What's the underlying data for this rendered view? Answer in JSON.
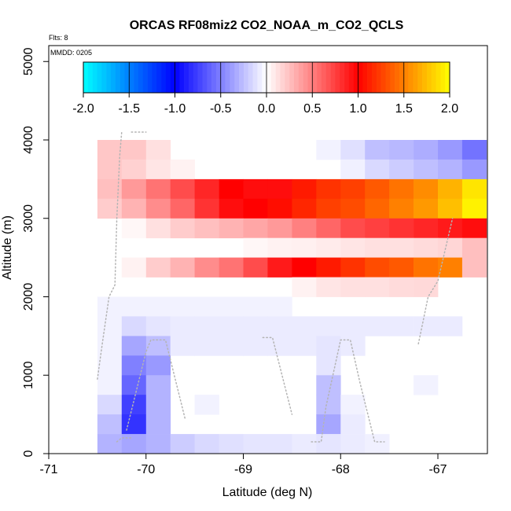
{
  "chart_data": {
    "type": "heatmap",
    "title": "ORCAS RF08miz2 CO2_NOAA_m_CO2_QCLS",
    "flights_label": "Flts: 8",
    "date_label": "MMDD: 0205",
    "xlabel": "Latitude (deg N)",
    "ylabel": "Altitude (m)",
    "xlim": [
      -71,
      -66.5
    ],
    "ylim": [
      0,
      5200
    ],
    "x_ticks": [
      -71,
      -70,
      -69,
      -68,
      -67
    ],
    "x_tick_labels": [
      "-71",
      "-70",
      "-69",
      "-68",
      "-67"
    ],
    "y_ticks": [
      0,
      1000,
      2000,
      3000,
      4000,
      5000
    ],
    "y_tick_labels": [
      "0",
      "1000",
      "2000",
      "3000",
      "4000",
      "5000"
    ],
    "colorbar": {
      "range": [
        -2.0,
        2.0
      ],
      "ticks": [
        -2.0,
        -1.5,
        -1.0,
        -0.5,
        0.0,
        0.5,
        1.0,
        1.5,
        2.0
      ],
      "tick_labels": [
        "-2.0",
        "-1.5",
        "-1.0",
        "-0.5",
        "0.0",
        "0.5",
        "1.0",
        "1.5",
        "2.0"
      ],
      "colors": [
        "#00ffff",
        "#0000ff",
        "#ffffff",
        "#ff0000",
        "#ffff00"
      ]
    },
    "cell_width_deg": 0.25,
    "cell_height_m": 250,
    "cells": [
      {
        "x0": -70.5,
        "y0": 3750,
        "values": [
          0.22,
          0.22,
          0.12,
          null,
          null,
          null,
          null,
          null,
          null,
          -0.05,
          -0.12,
          -0.25,
          -0.28,
          -0.32,
          -0.4,
          -0.55
        ]
      },
      {
        "x0": -70.5,
        "y0": 3500,
        "values": [
          0.22,
          0.18,
          0.1,
          0.05,
          null,
          null,
          null,
          null,
          null,
          null,
          -0.06,
          -0.15,
          -0.2,
          -0.25,
          -0.3,
          -0.4
        ]
      },
      {
        "x0": -70.5,
        "y0": 3250,
        "values": [
          0.25,
          0.4,
          0.55,
          0.7,
          0.85,
          1.0,
          0.95,
          0.95,
          1.1,
          1.2,
          1.25,
          1.35,
          1.45,
          1.55,
          1.7,
          1.9
        ]
      },
      {
        "x0": -70.5,
        "y0": 3000,
        "values": [
          0.2,
          0.3,
          0.45,
          0.6,
          0.8,
          0.95,
          1.0,
          1.05,
          1.15,
          1.25,
          1.3,
          1.4,
          1.5,
          1.6,
          1.75,
          1.95
        ]
      },
      {
        "x0": -70.5,
        "y0": 2750,
        "values": [
          null,
          0.03,
          0.12,
          0.2,
          0.25,
          0.3,
          0.35,
          0.4,
          0.5,
          0.6,
          0.7,
          0.75,
          0.8,
          0.85,
          0.9,
          0.95
        ]
      },
      {
        "x0": -70.5,
        "y0": 2500,
        "values": [
          null,
          null,
          null,
          null,
          null,
          null,
          0.03,
          0.05,
          0.06,
          0.08,
          0.1,
          0.12,
          0.12,
          0.14,
          0.16,
          0.25
        ]
      },
      {
        "x0": -70.5,
        "y0": 2250,
        "values": [
          null,
          0.05,
          0.2,
          0.3,
          0.45,
          0.55,
          0.7,
          0.9,
          1.0,
          1.1,
          1.2,
          1.3,
          1.35,
          1.45,
          1.5,
          0.25
        ]
      },
      {
        "x0": -70.5,
        "y0": 2000,
        "values": [
          null,
          null,
          null,
          null,
          null,
          null,
          null,
          null,
          0.05,
          0.1,
          0.12,
          0.12,
          0.14,
          0.15,
          null,
          null
        ]
      },
      {
        "x0": -70.5,
        "y0": 1750,
        "values": [
          -0.05,
          -0.05,
          -0.05,
          -0.05,
          -0.05,
          -0.05,
          -0.05,
          -0.05,
          null,
          null,
          null,
          null,
          null,
          null,
          null,
          null
        ]
      },
      {
        "x0": -70.5,
        "y0": 1500,
        "values": [
          -0.05,
          -0.15,
          -0.1,
          -0.08,
          -0.08,
          -0.08,
          -0.08,
          -0.08,
          -0.08,
          -0.08,
          -0.08,
          -0.08,
          -0.08,
          -0.08,
          -0.08,
          null
        ]
      },
      {
        "x0": -70.5,
        "y0": 1250,
        "values": [
          -0.05,
          -0.35,
          -0.25,
          -0.08,
          -0.08,
          -0.08,
          -0.08,
          -0.08,
          -0.08,
          -0.1,
          -0.08,
          null,
          null,
          null,
          null,
          null
        ]
      },
      {
        "x0": -70.5,
        "y0": 1000,
        "values": [
          -0.05,
          -0.5,
          -0.4,
          null,
          null,
          null,
          null,
          null,
          null,
          -0.1,
          null,
          null,
          null,
          null,
          null,
          null
        ]
      },
      {
        "x0": -70.5,
        "y0": 750,
        "values": [
          -0.05,
          -0.6,
          -0.3,
          null,
          null,
          null,
          null,
          null,
          null,
          -0.25,
          null,
          null,
          null,
          -0.05,
          null,
          null
        ]
      },
      {
        "x0": -70.5,
        "y0": 500,
        "values": [
          -0.15,
          -0.75,
          -0.3,
          null,
          -0.05,
          null,
          null,
          null,
          null,
          -0.25,
          -0.05,
          null,
          null,
          null,
          null,
          null
        ]
      },
      {
        "x0": -70.5,
        "y0": 250,
        "values": [
          -0.25,
          -0.8,
          -0.3,
          null,
          null,
          null,
          null,
          null,
          null,
          -0.35,
          -0.08,
          null,
          null,
          null,
          null,
          null
        ]
      },
      {
        "x0": -70.5,
        "y0": 0,
        "values": [
          -0.3,
          -0.35,
          -0.3,
          -0.2,
          -0.15,
          -0.12,
          -0.1,
          -0.1,
          -0.08,
          -0.1,
          -0.08,
          -0.06,
          null,
          null,
          null,
          null
        ]
      }
    ],
    "flight_track": [
      [
        -70.5,
        950
      ],
      [
        -70.45,
        1400
      ],
      [
        -70.38,
        2000
      ],
      [
        -70.32,
        2150
      ],
      [
        -70.3,
        3000
      ],
      [
        -70.27,
        3800
      ],
      [
        -70.25,
        4100
      ],
      [
        -70.15,
        4100
      ],
      [
        -70.0,
        4100
      ],
      [
        -70.3,
        150
      ],
      [
        -70.25,
        200
      ],
      [
        -70.15,
        200
      ],
      [
        -70.2,
        300
      ],
      [
        -70.1,
        800
      ],
      [
        -70.0,
        1300
      ],
      [
        -69.95,
        1450
      ],
      [
        -69.8,
        1450
      ],
      [
        -69.75,
        1200
      ],
      [
        -69.6,
        450
      ],
      [
        -68.8,
        1480
      ],
      [
        -68.7,
        1480
      ],
      [
        -68.5,
        500
      ],
      [
        -68.3,
        150
      ],
      [
        -68.2,
        150
      ],
      [
        -68.15,
        600
      ],
      [
        -68.0,
        1450
      ],
      [
        -67.9,
        1450
      ],
      [
        -67.8,
        900
      ],
      [
        -67.65,
        150
      ],
      [
        -67.55,
        150
      ],
      [
        -67.2,
        1400
      ],
      [
        -67.1,
        2000
      ],
      [
        -67.0,
        2200
      ],
      [
        -66.85,
        3000
      ]
    ]
  }
}
